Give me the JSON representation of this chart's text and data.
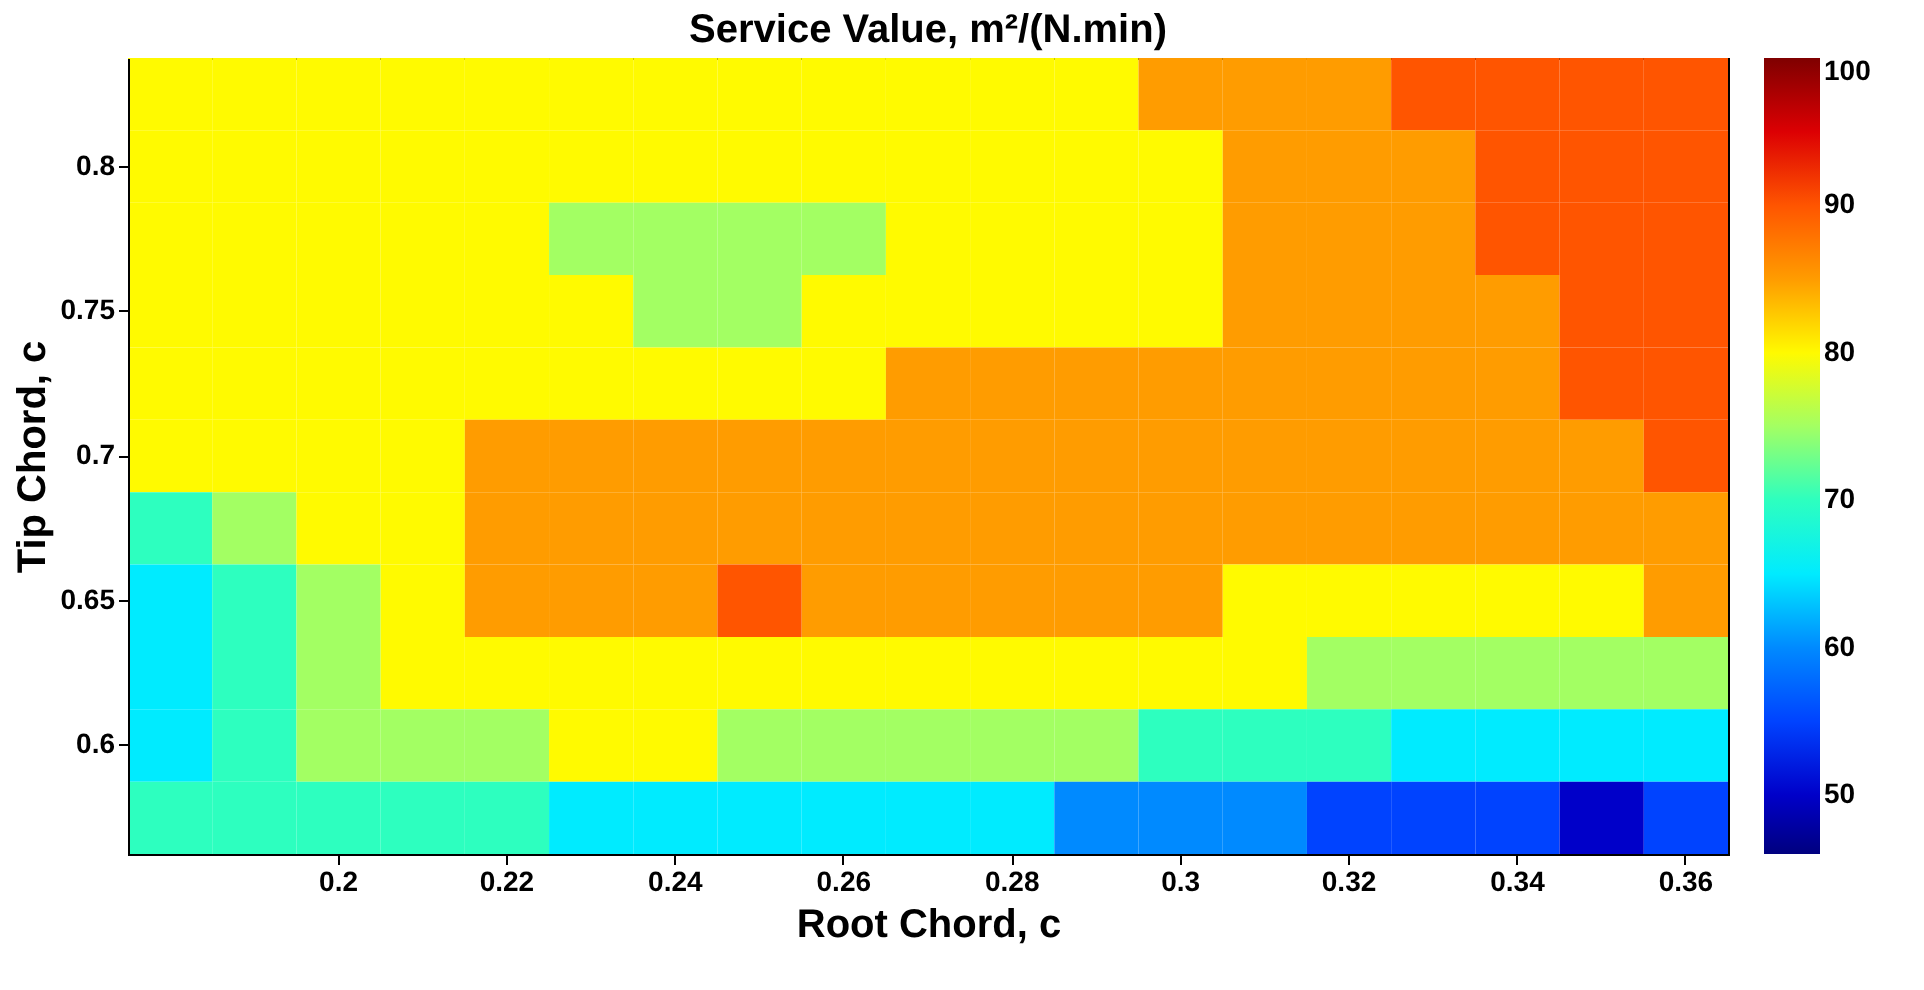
{
  "chart_data": {
    "type": "heatmap",
    "title": "Service Value, m²/(N.min)",
    "xlabel": "Root Chord, c",
    "ylabel": "Tip Chord, c",
    "categories": [
      null,
      null,
      "0.2",
      null,
      "0.22",
      null,
      "0.24",
      null,
      "0.26",
      null,
      "0.28",
      null,
      "0.3",
      null,
      "0.32",
      null,
      "0.34",
      null,
      "0.36"
    ],
    "y_categories": [
      null,
      "0.8",
      null,
      "0.75",
      null,
      "0.7",
      null,
      "0.65",
      null,
      "0.6",
      null
    ],
    "cells": [
      [
        80,
        80,
        80,
        80,
        80,
        80,
        80,
        80,
        80,
        80,
        80,
        80,
        85,
        85,
        85,
        90,
        90,
        90,
        90
      ],
      [
        80,
        80,
        80,
        80,
        80,
        80,
        80,
        80,
        80,
        80,
        80,
        80,
        80,
        85,
        85,
        85,
        90,
        90,
        90
      ],
      [
        80,
        80,
        80,
        80,
        80,
        75,
        75,
        75,
        75,
        80,
        80,
        80,
        80,
        85,
        85,
        85,
        90,
        90,
        90
      ],
      [
        80,
        80,
        80,
        80,
        80,
        80,
        75,
        75,
        80,
        80,
        80,
        80,
        80,
        85,
        85,
        85,
        85,
        90,
        90
      ],
      [
        80,
        80,
        80,
        80,
        80,
        80,
        80,
        80,
        80,
        85,
        85,
        85,
        85,
        85,
        85,
        85,
        85,
        90,
        90
      ],
      [
        80,
        80,
        80,
        80,
        85,
        85,
        85,
        85,
        85,
        85,
        85,
        85,
        85,
        85,
        85,
        85,
        85,
        85,
        90
      ],
      [
        70,
        75,
        80,
        80,
        85,
        85,
        85,
        85,
        85,
        85,
        85,
        85,
        85,
        85,
        85,
        85,
        85,
        85,
        85
      ],
      [
        65,
        70,
        75,
        80,
        85,
        85,
        85,
        90,
        85,
        85,
        85,
        85,
        85,
        80,
        80,
        80,
        80,
        80,
        85
      ],
      [
        65,
        70,
        75,
        80,
        80,
        80,
        80,
        80,
        80,
        80,
        80,
        80,
        80,
        80,
        75,
        75,
        75,
        75,
        75
      ],
      [
        65,
        70,
        75,
        75,
        75,
        80,
        80,
        75,
        75,
        75,
        75,
        75,
        70,
        70,
        70,
        65,
        65,
        65,
        65
      ],
      [
        70,
        70,
        70,
        70,
        70,
        65,
        65,
        65,
        65,
        65,
        65,
        60,
        60,
        60,
        55,
        55,
        55,
        50,
        55
      ]
    ],
    "clim": [
      46,
      100
    ],
    "cticks": [
      50,
      60,
      70,
      80,
      90,
      100
    ]
  }
}
